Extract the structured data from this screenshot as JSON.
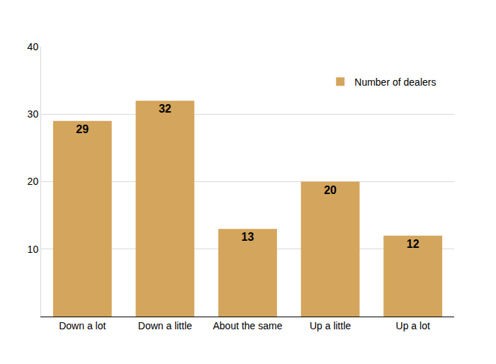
{
  "chart_data": {
    "type": "bar",
    "categories": [
      "Down a lot",
      "Down a little",
      "About the same",
      "Up a little",
      "Up a lot"
    ],
    "series": [
      {
        "name": "Number of dealers",
        "color": "#d4a55c",
        "values": [
          29,
          32,
          13,
          20,
          12
        ]
      }
    ],
    "ylim": [
      0,
      40
    ],
    "yticks": [
      10,
      20,
      30,
      40
    ],
    "grid": true,
    "data_labels": true,
    "legend": "upper right"
  }
}
